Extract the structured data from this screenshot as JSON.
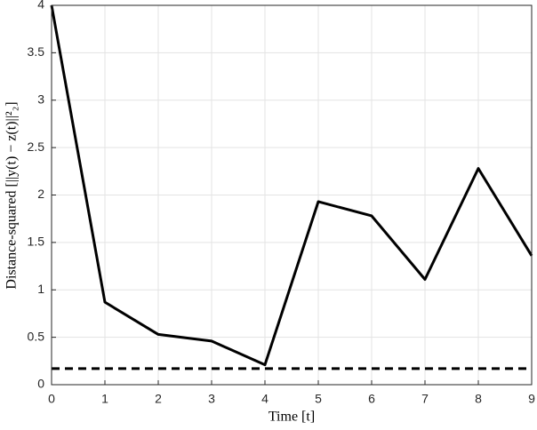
{
  "chart_data": {
    "type": "line",
    "xlabel": "Time [t]",
    "ylabel": "Distance-squared [||y(t) − z(t)||²₂]",
    "x": [
      0,
      1,
      2,
      3,
      4,
      5,
      6,
      7,
      8,
      9
    ],
    "series": [
      {
        "color": "#000000",
        "dash": false,
        "values": [
          4,
          0.87,
          0.53,
          0.46,
          0.21,
          1.93,
          1.78,
          1.11,
          2.28,
          1.36
        ]
      },
      {
        "color": "#000000",
        "dash": true,
        "values": [
          0.17,
          0.17,
          0.17,
          0.17,
          0.17,
          0.17,
          0.17,
          0.17,
          0.17,
          0.17
        ]
      }
    ],
    "xlim": [
      0,
      9
    ],
    "ylim": [
      0,
      4
    ],
    "xticks": [
      0,
      1,
      2,
      3,
      4,
      5,
      6,
      7,
      8,
      9
    ],
    "yticks": [
      0,
      0.5,
      1,
      1.5,
      2,
      2.5,
      3,
      3.5,
      4
    ],
    "grid": true
  }
}
